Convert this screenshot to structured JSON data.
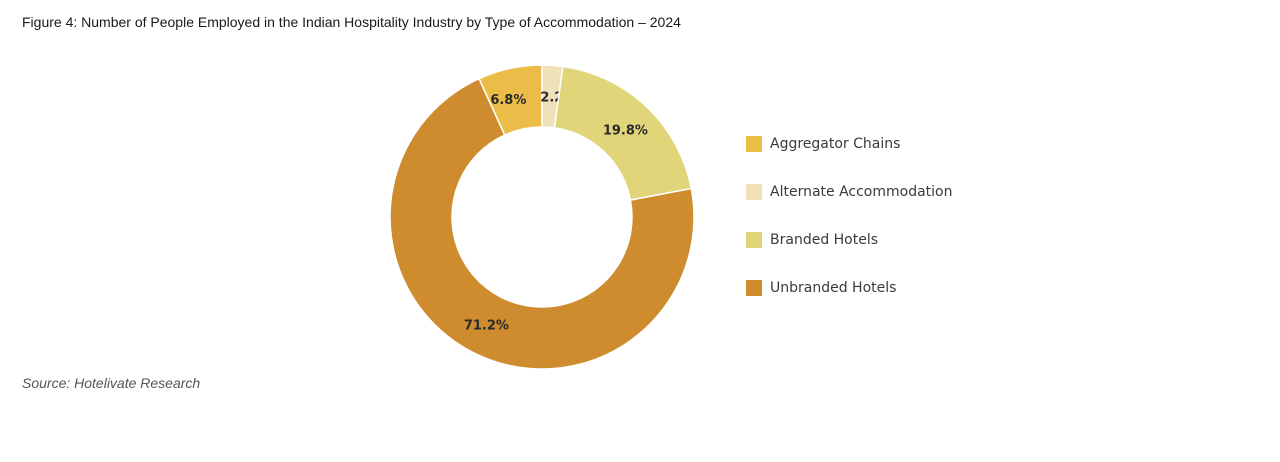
{
  "title": "Figure 4: Number of People Employed in the Indian Hospitality Industry by Type of Accommodation – 2024",
  "source": "Source: Hotelivate Research",
  "chart_data": {
    "type": "pie",
    "donut": true,
    "title": "Figure 4: Number of People Employed in the Indian Hospitality Industry by Type of Accommodation – 2024",
    "legend_position": "right",
    "slices": [
      {
        "name": "Aggregator Chains",
        "value": 6.8,
        "label": "6.8%",
        "color": "#ebbd48"
      },
      {
        "name": "Alternate Accommodation",
        "value": 2.2,
        "label": "2.2%",
        "color": "#efe2b8"
      },
      {
        "name": "Branded Hotels",
        "value": 19.8,
        "label": "19.8%",
        "color": "#e1d57a"
      },
      {
        "name": "Unbranded Hotels",
        "value": 71.2,
        "label": "71.2%",
        "color": "#cf8c2e"
      }
    ]
  }
}
